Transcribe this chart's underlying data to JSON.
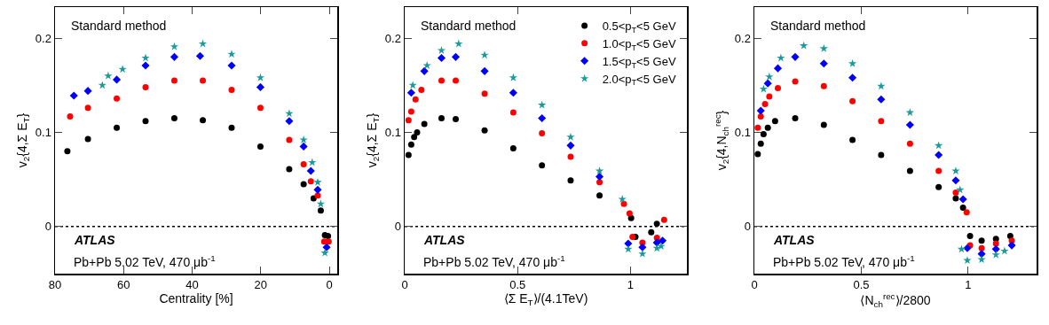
{
  "chart_data": [
    {
      "type": "scatter",
      "xlabel": "Centrality [%]",
      "ylabel": "v$_{2}${4,Σ E$_{T}$}",
      "annotations": [
        "Standard method",
        "ATLAS",
        "Pb+Pb 5.02 TeV, 470 μb$^{-1}$"
      ],
      "xlim": [
        80,
        -2.3
      ],
      "xticks": [
        80,
        60,
        40,
        20,
        0
      ],
      "ylim": [
        -0.05,
        0.233
      ],
      "yticks": [
        0,
        0.1,
        0.2
      ],
      "grid": false,
      "legend": false,
      "ref_lines": [
        {
          "axis": "y",
          "value": 0,
          "color": "#000000",
          "line_style": "dotted"
        }
      ],
      "series": [
        {
          "color": "#000000",
          "marker": "circle",
          "x": [
            76.4,
            70.4,
            62.0,
            53.6,
            45.2,
            36.9,
            28.5,
            20.1,
            11.7,
            7.5,
            4.6,
            2.5,
            1.3,
            0.4
          ],
          "values": [
            0.08,
            0.093,
            0.105,
            0.112,
            0.115,
            0.113,
            0.105,
            0.085,
            0.061,
            0.045,
            0.03,
            0.017,
            -0.009,
            -0.01
          ]
        },
        {
          "color": "#ff0000",
          "marker": "circle",
          "x": [
            75.6,
            70.4,
            62.0,
            53.6,
            45.2,
            36.9,
            28.5,
            20.1,
            11.7,
            7.5,
            5.4,
            3.4,
            1.5,
            0.2
          ],
          "values": [
            0.117,
            0.126,
            0.136,
            0.148,
            0.155,
            0.155,
            0.145,
            0.126,
            0.092,
            0.066,
            0.048,
            0.033,
            -0.016,
            -0.016
          ]
        },
        {
          "color": "#0000ff",
          "marker": "diamond",
          "x": [
            74.5,
            70.4,
            62.0,
            53.6,
            45.2,
            37.7,
            28.5,
            20.1,
            11.7,
            7.5,
            5.4,
            3.4,
            0.8
          ],
          "values": [
            0.139,
            0.144,
            0.156,
            0.171,
            0.18,
            0.181,
            0.171,
            0.148,
            0.112,
            0.085,
            0.059,
            0.039,
            -0.022
          ]
        },
        {
          "color": "#1a9a9a",
          "marker": "star",
          "x": [
            66.2,
            64.5,
            60.3,
            53.6,
            45.2,
            36.9,
            28.5,
            20.1,
            11.7,
            7.5,
            5.0,
            3.4,
            2.5,
            1.3
          ],
          "values": [
            0.15,
            0.16,
            0.167,
            0.179,
            0.191,
            0.194,
            0.183,
            0.158,
            0.12,
            0.092,
            0.068,
            0.047,
            0.024,
            -0.028
          ]
        }
      ]
    },
    {
      "type": "scatter",
      "xlabel": "⟨Σ E$_{T}$⟩/(4.1TeV)",
      "ylabel": "v$_{2}${4,Σ E$_{T}$}",
      "annotations": [
        "Standard method",
        "ATLAS",
        "Pb+Pb 5.02 TeV, 470 μb$^{-1}$"
      ],
      "xlim": [
        0,
        1.25
      ],
      "xticks": [
        0,
        0.5,
        1
      ],
      "ylim": [
        -0.05,
        0.233
      ],
      "yticks": [
        0,
        0.1,
        0.2
      ],
      "grid": false,
      "legend": "top right",
      "ref_lines": [
        {
          "axis": "y",
          "value": 0,
          "color": "#000000",
          "line_style": "dotted"
        }
      ],
      "series": [
        {
          "name": "0.5<p$_{T}$<5 GeV",
          "color": "#000000",
          "marker": "circle",
          "x": [
            0.017,
            0.029,
            0.042,
            0.055,
            0.087,
            0.163,
            0.226,
            0.354,
            0.481,
            0.608,
            0.735,
            0.863,
            1.003,
            1.022,
            1.092,
            1.117
          ],
          "values": [
            0.076,
            0.087,
            0.095,
            0.1,
            0.109,
            0.115,
            0.114,
            0.102,
            0.083,
            0.065,
            0.049,
            0.033,
            0.009,
            -0.011,
            -0.006,
            0.003
          ]
        },
        {
          "name": "1.0<p$_{T}$<5 GeV",
          "color": "#ff0000",
          "marker": "circle",
          "x": [
            0.017,
            0.029,
            0.048,
            0.074,
            0.163,
            0.226,
            0.354,
            0.481,
            0.608,
            0.735,
            0.863,
            0.971,
            0.996,
            1.009,
            1.053,
            1.117,
            1.149
          ],
          "values": [
            0.113,
            0.122,
            0.135,
            0.145,
            0.155,
            0.155,
            0.141,
            0.121,
            0.099,
            0.074,
            0.047,
            0.024,
            0.014,
            -0.011,
            -0.017,
            -0.012,
            0.007
          ]
        },
        {
          "name": "1.5<p$_{T}$<5 GeV",
          "color": "#0000ff",
          "marker": "diamond",
          "x": [
            0.029,
            0.087,
            0.163,
            0.226,
            0.354,
            0.481,
            0.608,
            0.735,
            0.863,
            0.99,
            1.053,
            1.117,
            1.142
          ],
          "values": [
            0.142,
            0.165,
            0.179,
            0.18,
            0.165,
            0.142,
            0.115,
            0.086,
            0.053,
            -0.018,
            -0.022,
            -0.017,
            -0.015
          ]
        },
        {
          "name": "2.0<p$_{T}$<5 GeV",
          "color": "#1a9a9a",
          "marker": "star",
          "x": [
            0.036,
            0.099,
            0.163,
            0.239,
            0.354,
            0.481,
            0.608,
            0.735,
            0.863,
            0.964,
            0.99,
            1.053,
            1.117,
            1.136
          ],
          "values": [
            0.15,
            0.171,
            0.187,
            0.194,
            0.182,
            0.158,
            0.129,
            0.095,
            0.059,
            0.029,
            -0.024,
            -0.029,
            -0.023,
            -0.021
          ]
        }
      ]
    },
    {
      "type": "scatter",
      "xlabel": "⟨N$_{ch}$$^{rec}$⟩/2800",
      "ylabel": "v$_{2}${4,N$_{ch}$$^{rec}$}",
      "annotations": [
        "Standard method",
        "ATLAS",
        "Pb+Pb 5.02 TeV, 470 μb$^{-1}$"
      ],
      "xlim": [
        0,
        1.32
      ],
      "xticks": [
        0,
        0.5,
        1
      ],
      "ylim": [
        -0.05,
        0.233
      ],
      "yticks": [
        0,
        0.1,
        0.2
      ],
      "grid": false,
      "legend": false,
      "ref_lines": [
        {
          "axis": "y",
          "value": 0,
          "color": "#000000",
          "line_style": "dotted"
        }
      ],
      "series": [
        {
          "color": "#000000",
          "marker": "circle",
          "x": [
            0.016,
            0.03,
            0.043,
            0.063,
            0.097,
            0.191,
            0.325,
            0.459,
            0.593,
            0.728,
            0.862,
            0.942,
            0.976,
            1.009,
            1.063,
            1.13,
            1.197
          ],
          "values": [
            0.077,
            0.088,
            0.098,
            0.105,
            0.112,
            0.115,
            0.108,
            0.092,
            0.076,
            0.059,
            0.042,
            0.03,
            0.02,
            -0.01,
            -0.015,
            -0.013,
            -0.01
          ]
        },
        {
          "color": "#ff0000",
          "marker": "circle",
          "x": [
            0.016,
            0.03,
            0.05,
            0.07,
            0.11,
            0.191,
            0.325,
            0.459,
            0.593,
            0.728,
            0.862,
            0.942,
            0.993,
            1.009,
            1.063,
            1.13,
            1.204
          ],
          "values": [
            0.105,
            0.117,
            0.13,
            0.138,
            0.147,
            0.154,
            0.149,
            0.133,
            0.112,
            0.088,
            0.059,
            0.036,
            0.015,
            -0.02,
            -0.023,
            -0.018,
            -0.015
          ]
        },
        {
          "color": "#0000ff",
          "marker": "diamond",
          "x": [
            0.03,
            0.063,
            0.11,
            0.191,
            0.325,
            0.459,
            0.593,
            0.728,
            0.862,
            0.942,
            0.976,
            0.996,
            1.063,
            1.13,
            1.204
          ],
          "values": [
            0.123,
            0.152,
            0.168,
            0.18,
            0.173,
            0.158,
            0.135,
            0.108,
            0.076,
            0.049,
            0.029,
            -0.023,
            -0.029,
            -0.024,
            -0.02
          ]
        },
        {
          "color": "#1a9a9a",
          "marker": "star",
          "x": [
            0.043,
            0.07,
            0.124,
            0.231,
            0.325,
            0.459,
            0.593,
            0.728,
            0.862,
            0.942,
            0.962,
            0.969,
            0.996,
            1.063,
            1.13,
            1.17
          ],
          "values": [
            0.146,
            0.159,
            0.179,
            0.192,
            0.189,
            0.173,
            0.149,
            0.121,
            0.086,
            0.059,
            0.039,
            -0.024,
            -0.036,
            -0.035,
            -0.03,
            -0.026
          ]
        }
      ]
    }
  ]
}
